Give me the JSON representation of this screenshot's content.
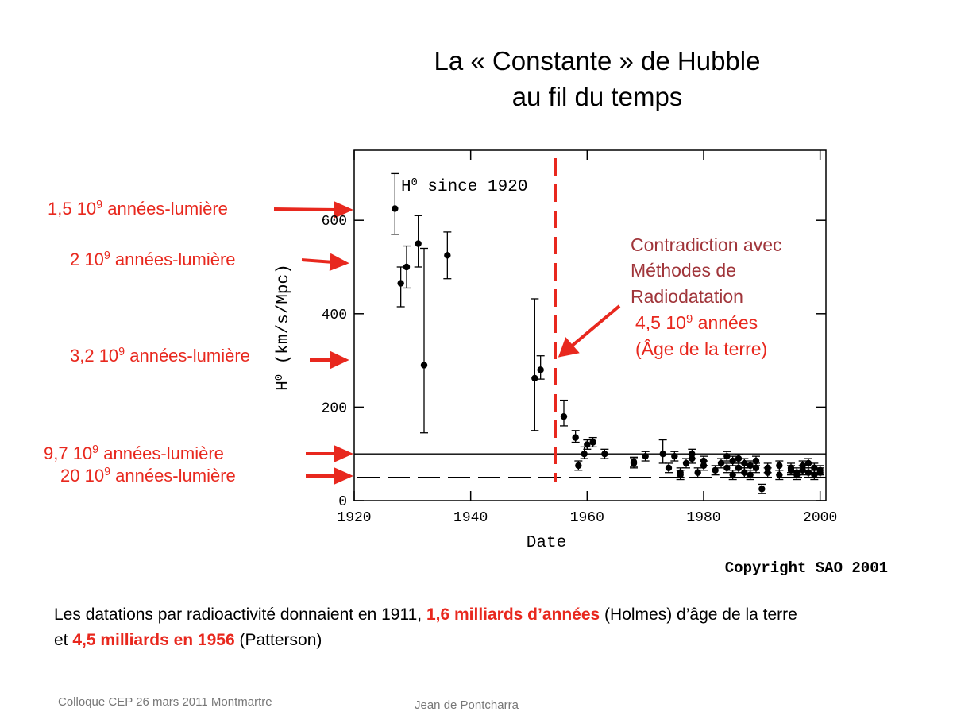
{
  "title": [
    "La « Constante » de Hubble",
    "au fil du temps"
  ],
  "left_labels": [
    [
      "1,5 10",
      "9",
      " années-lumière"
    ],
    [
      "2 10",
      "9",
      " années-lumière"
    ],
    [
      "3,2 10",
      "9",
      " années-lumière"
    ],
    [
      "9,7 10",
      "9",
      " années-lumière"
    ],
    [
      "20 10",
      "9",
      " années-lumière"
    ]
  ],
  "note": [
    [
      "Contradiction avec"
    ],
    [
      "Méthodes de"
    ],
    [
      "Radiodatation"
    ],
    [
      "4,5 10",
      "9",
      " années"
    ],
    [
      "(Âge de la terre)"
    ]
  ],
  "copyright": "Copyright SAO 2001",
  "paragraph": [
    [
      {
        "text": "Les datations par radioactivité donnaient en 1911, ",
        "highlight": false
      },
      {
        "text": "1,6 milliards d’années",
        "highlight": true
      },
      {
        "text": " (Holmes) d’âge de la terre",
        "highlight": false
      }
    ],
    [
      {
        "text": "et ",
        "highlight": false
      },
      {
        "text": "4,5 milliards en 1956",
        "highlight": true
      },
      {
        "text": " (Patterson)",
        "highlight": false
      }
    ]
  ],
  "footer": [
    "Colloque CEP 26 mars 2011 Montmartre",
    "Jean de Pontcharra"
  ],
  "chart_data": {
    "type": "scatter",
    "xlabel": "Date",
    "ylabel": [
      "H",
      "0",
      " (km/s/Mpc)"
    ],
    "inset_label": [
      "H",
      "0",
      " since 1920"
    ],
    "color": "#000000",
    "x": [
      1927,
      1928,
      1929,
      1931,
      1932,
      1936,
      1951,
      1952,
      1956,
      1958,
      1958.5,
      1959.5,
      1960,
      1961,
      1963,
      1968,
      1968,
      1970,
      1973,
      1974,
      1975,
      1976,
      1976,
      1977,
      1978,
      1978,
      1979,
      1980,
      1980,
      1982,
      1983,
      1984,
      1984,
      1985,
      1985,
      1986,
      1986,
      1987,
      1987,
      1988,
      1988,
      1989,
      1989,
      1990,
      1991,
      1991,
      1993,
      1993,
      1995,
      1995,
      1996,
      1996,
      1997,
      1997,
      1998,
      1998,
      1999,
      1999,
      2000,
      2000
    ],
    "values": [
      625,
      465,
      500,
      550,
      290,
      525,
      262,
      280,
      180,
      135,
      75,
      100,
      120,
      125,
      100,
      80,
      83,
      95,
      100,
      70,
      95,
      60,
      55,
      80,
      100,
      90,
      60,
      75,
      85,
      65,
      80,
      70,
      95,
      55,
      85,
      70,
      90,
      60,
      80,
      55,
      75,
      70,
      85,
      25,
      60,
      70,
      75,
      55,
      70,
      65,
      60,
      55,
      75,
      65,
      60,
      80,
      55,
      70,
      65,
      60
    ],
    "err_minus": [
      55,
      50,
      45,
      50,
      145,
      50,
      112,
      20,
      20,
      10,
      10,
      10,
      10,
      10,
      10,
      10,
      10,
      10,
      20,
      10,
      10,
      10,
      10,
      10,
      10,
      10,
      10,
      10,
      10,
      10,
      10,
      10,
      10,
      10,
      10,
      10,
      10,
      10,
      10,
      10,
      10,
      10,
      10,
      10,
      10,
      10,
      10,
      10,
      10,
      10,
      10,
      10,
      10,
      10,
      10,
      10,
      10,
      10,
      10,
      10
    ],
    "err_plus": [
      75,
      35,
      45,
      60,
      250,
      50,
      170,
      30,
      35,
      15,
      10,
      15,
      10,
      10,
      10,
      10,
      10,
      10,
      30,
      10,
      10,
      10,
      10,
      10,
      10,
      10,
      10,
      10,
      10,
      10,
      10,
      10,
      10,
      10,
      10,
      10,
      10,
      10,
      10,
      10,
      10,
      10,
      10,
      10,
      10,
      10,
      10,
      10,
      10,
      10,
      10,
      10,
      10,
      10,
      10,
      10,
      10,
      10,
      10,
      10
    ],
    "xlim": [
      1920,
      2001
    ],
    "ylim": [
      0,
      750
    ],
    "xticks": [
      1920,
      1940,
      1960,
      1980,
      2000
    ],
    "yticks": [
      0,
      200,
      400,
      600
    ],
    "hlines": [
      {
        "value": 100,
        "style": "solid"
      },
      {
        "value": 50,
        "style": "dashed"
      }
    ],
    "vline": {
      "value": 1954.5,
      "color": "#e8281e"
    }
  }
}
